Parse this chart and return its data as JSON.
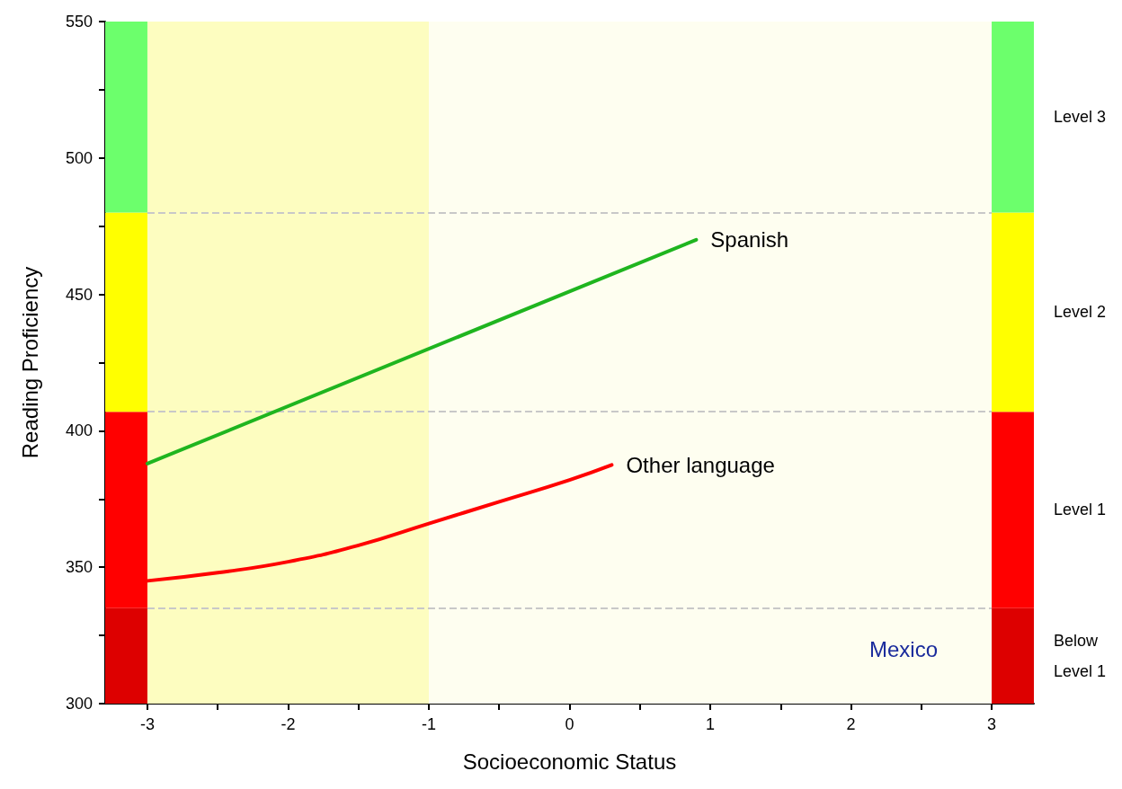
{
  "chart_data": {
    "type": "line",
    "xlabel": "Socioeconomic Status",
    "ylabel": "Reading Proficiency",
    "series": [
      {
        "name": "Spanish",
        "color": "#1fb51f",
        "x": [
          -3,
          0.9
        ],
        "values": [
          388,
          470
        ]
      },
      {
        "name": "Other language",
        "color": "#ff0000",
        "x": [
          -3,
          -2.5,
          -2,
          -1.5,
          -1,
          -0.5,
          0,
          0.3
        ],
        "values": [
          345,
          348,
          352,
          358,
          366,
          374,
          382,
          387.5
        ]
      }
    ],
    "xlim": [
      -3.3,
      3.3
    ],
    "xticks": [
      -3,
      {
        "value": -2.5,
        "label": null
      },
      -2,
      {
        "value": -1.5,
        "label": null
      },
      -1,
      {
        "value": -0.5,
        "label": null
      },
      0,
      {
        "value": 0.5,
        "label": null
      },
      1,
      {
        "value": 1.5,
        "label": null
      },
      2,
      {
        "value": 2.5,
        "label": null
      },
      3
    ],
    "ylim": [
      300,
      550
    ],
    "yticks": [
      300,
      {
        "value": 325,
        "label": null
      },
      350,
      {
        "value": 375,
        "label": null
      },
      400,
      {
        "value": 425,
        "label": null
      },
      450,
      {
        "value": 475,
        "label": null
      },
      500,
      {
        "value": 525,
        "label": null
      },
      550
    ],
    "bands": [
      {
        "axis": "x",
        "from": -3,
        "to": -1,
        "color": "#fdfdc0"
      },
      {
        "axis": "x",
        "from": -1,
        "to": 3,
        "color": "#fefef0"
      },
      {
        "axis": "y",
        "from": 300,
        "to": 335,
        "color": "#dd0000"
      },
      {
        "axis": "y",
        "from": 335,
        "to": 407,
        "color": "#ff0000"
      },
      {
        "axis": "y",
        "from": 407,
        "to": 480,
        "color": "#ffff00"
      },
      {
        "axis": "y",
        "from": 480,
        "to": 550,
        "color": "#6cff6c"
      },
      {
        "axis": "y",
        "from": 300,
        "to": 335,
        "color": "#dd0000"
      },
      {
        "axis": "y",
        "from": 335,
        "to": 407,
        "color": "#ff0000"
      },
      {
        "axis": "y",
        "from": 407,
        "to": 480,
        "color": "#ffff00"
      },
      {
        "axis": "y",
        "from": 480,
        "to": 550,
        "color": "#6cff6c"
      }
    ],
    "ref_lines": [
      {
        "axis": "y",
        "value": 335,
        "color": "#c8c8c8",
        "line_style": "dashed"
      },
      {
        "axis": "y",
        "value": 407,
        "color": "#c8c8c8",
        "line_style": "dashed"
      },
      {
        "axis": "y",
        "value": 480,
        "color": "#c8c8c8",
        "line_style": "dashed"
      }
    ],
    "annotations": [
      "Mexico",
      "Below Level 1",
      "Level 1",
      "Level 2",
      "Level 3"
    ],
    "grid": false,
    "legend": false,
    "marker": "none",
    "line_style": "solid"
  }
}
